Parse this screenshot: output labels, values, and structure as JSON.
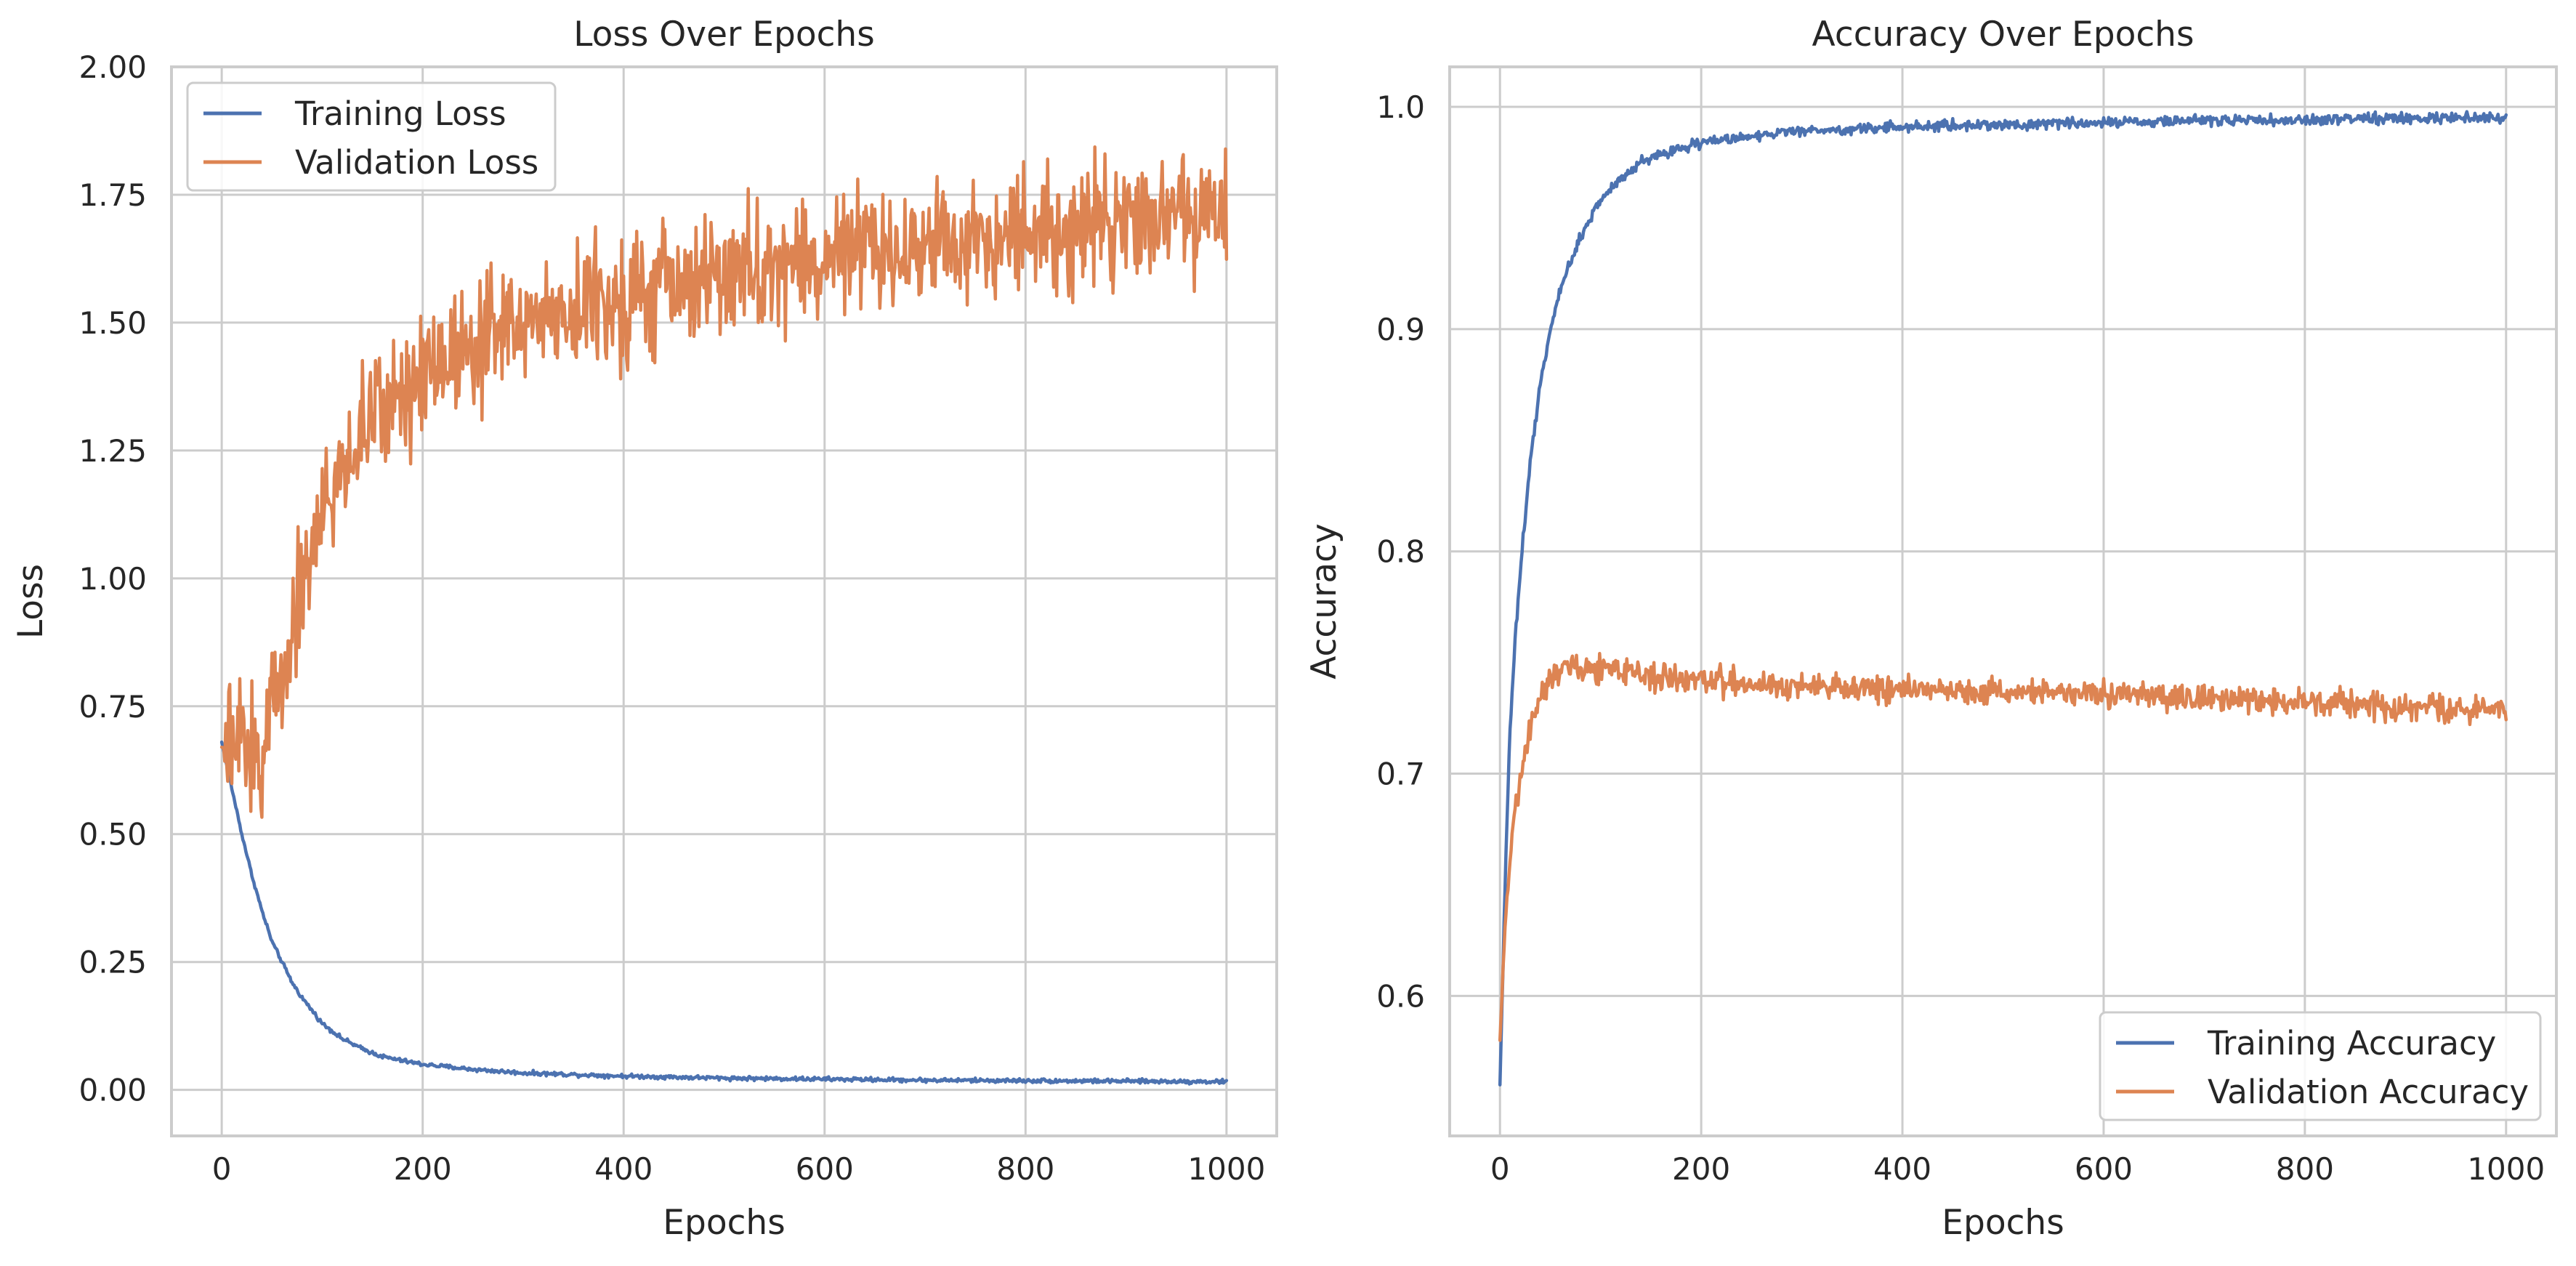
{
  "chart_data": [
    {
      "type": "line",
      "title": "Loss Over Epochs",
      "xlabel": "Epochs",
      "ylabel": "Loss",
      "xlim": [
        -50,
        1050
      ],
      "ylim": [
        -0.09,
        2.0
      ],
      "xticks": [
        0,
        200,
        400,
        600,
        800,
        1000
      ],
      "xtick_labels": [
        "0",
        "200",
        "400",
        "600",
        "800",
        "1000"
      ],
      "yticks": [
        0.0,
        0.25,
        0.5,
        0.75,
        1.0,
        1.25,
        1.5,
        1.75,
        2.0
      ],
      "ytick_labels": [
        "0.00",
        "0.25",
        "0.50",
        "0.75",
        "1.00",
        "1.25",
        "1.50",
        "1.75",
        "2.00"
      ],
      "grid": true,
      "legend": "top-left",
      "colors": {
        "Training Loss": "#4c72b0",
        "Validation Loss": "#dd8452"
      },
      "series": [
        {
          "name": "Training Loss",
          "x": [
            0,
            10,
            20,
            30,
            40,
            50,
            60,
            70,
            80,
            100,
            120,
            140,
            160,
            180,
            200,
            250,
            300,
            400,
            500,
            600,
            700,
            800,
            900,
            1000
          ],
          "values": [
            0.68,
            0.59,
            0.5,
            0.42,
            0.35,
            0.29,
            0.25,
            0.21,
            0.18,
            0.13,
            0.1,
            0.08,
            0.065,
            0.057,
            0.05,
            0.04,
            0.033,
            0.027,
            0.023,
            0.021,
            0.019,
            0.018,
            0.017,
            0.016
          ]
        },
        {
          "name": "Validation Loss",
          "x": [
            0,
            10,
            20,
            30,
            40,
            50,
            60,
            70,
            80,
            90,
            100,
            120,
            140,
            160,
            180,
            200,
            250,
            300,
            350,
            400,
            450,
            500,
            550,
            600,
            650,
            700,
            750,
            800,
            850,
            900,
            950,
            1000
          ],
          "values": [
            0.67,
            0.66,
            0.68,
            0.66,
            0.65,
            0.75,
            0.82,
            0.91,
            0.99,
            1.06,
            1.12,
            1.21,
            1.29,
            1.33,
            1.37,
            1.41,
            1.47,
            1.5,
            1.53,
            1.55,
            1.57,
            1.59,
            1.61,
            1.62,
            1.64,
            1.65,
            1.67,
            1.68,
            1.69,
            1.7,
            1.71,
            1.72
          ]
        }
      ]
    },
    {
      "type": "line",
      "title": "Accuracy Over Epochs",
      "xlabel": "Epochs",
      "ylabel": "Accuracy",
      "xlim": [
        -50,
        1050
      ],
      "ylim": [
        0.537,
        1.018
      ],
      "xticks": [
        0,
        200,
        400,
        600,
        800,
        1000
      ],
      "xtick_labels": [
        "0",
        "200",
        "400",
        "600",
        "800",
        "1000"
      ],
      "yticks": [
        0.6,
        0.7,
        0.8,
        0.9,
        1.0
      ],
      "ytick_labels": [
        "0.6",
        "0.7",
        "0.8",
        "0.9",
        "1.0"
      ],
      "grid": true,
      "legend": "bottom-right",
      "colors": {
        "Training Accuracy": "#4c72b0",
        "Validation Accuracy": "#dd8452"
      },
      "series": [
        {
          "name": "Training Accuracy",
          "x": [
            0,
            5,
            10,
            15,
            20,
            30,
            40,
            50,
            60,
            70,
            80,
            100,
            120,
            140,
            160,
            200,
            250,
            300,
            400,
            500,
            600,
            700,
            800,
            900,
            1000
          ],
          "values": [
            0.56,
            0.65,
            0.72,
            0.76,
            0.79,
            0.84,
            0.875,
            0.9,
            0.917,
            0.93,
            0.942,
            0.958,
            0.968,
            0.975,
            0.979,
            0.984,
            0.987,
            0.989,
            0.991,
            0.992,
            0.993,
            0.994,
            0.994,
            0.995,
            0.995
          ]
        },
        {
          "name": "Validation Accuracy",
          "x": [
            0,
            5,
            10,
            15,
            20,
            30,
            40,
            50,
            60,
            70,
            80,
            100,
            120,
            150,
            200,
            300,
            400,
            500,
            600,
            700,
            800,
            900,
            1000
          ],
          "values": [
            0.58,
            0.63,
            0.66,
            0.68,
            0.7,
            0.72,
            0.735,
            0.743,
            0.748,
            0.749,
            0.748,
            0.747,
            0.746,
            0.744,
            0.742,
            0.739,
            0.738,
            0.737,
            0.736,
            0.734,
            0.732,
            0.73,
            0.729
          ]
        }
      ]
    }
  ]
}
